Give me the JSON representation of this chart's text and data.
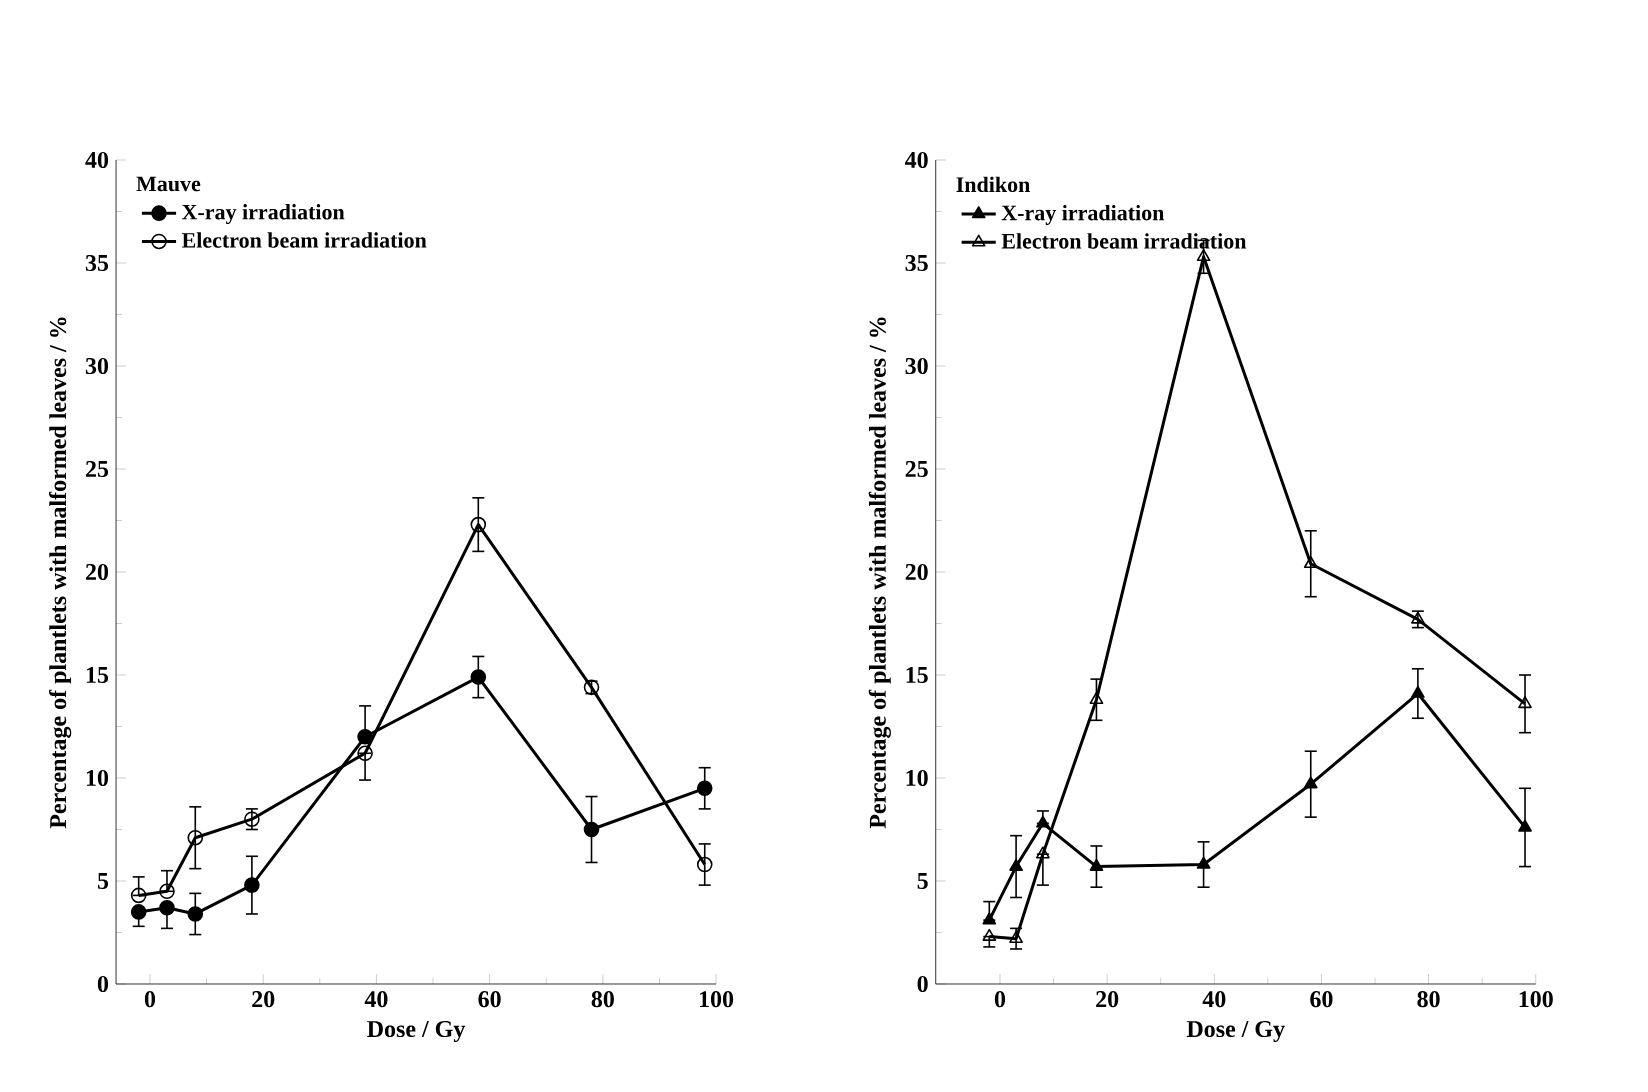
{
  "chart_data": [
    {
      "type": "line",
      "xlabel": "Dose / Gy",
      "ylabel": "Percentage of plantlets with malformed leaves / %",
      "legend_title": "Mauve",
      "legend": "top left",
      "xlim": [
        -6,
        100
      ],
      "ylim": [
        0,
        40
      ],
      "xticks": [
        0,
        20,
        40,
        60,
        80,
        100
      ],
      "yticks": [
        0,
        5,
        10,
        15,
        20,
        25,
        30,
        35,
        40
      ],
      "series": [
        {
          "name": "X-ray irradiation",
          "color": "#000000",
          "marker": "circle",
          "x": [
            -2,
            3,
            8,
            18,
            38,
            58,
            78,
            98
          ],
          "values": [
            3.5,
            3.7,
            3.4,
            4.8,
            12,
            14.9,
            7.5,
            9.5
          ],
          "errors": [
            [
              2.8,
              3.5
            ],
            [
              2.7,
              3.7
            ],
            1,
            1.4,
            [
              12,
              13.5
            ],
            1,
            1.6,
            1
          ]
        },
        {
          "name": "Electron beam irradiation",
          "color": "#000000",
          "marker": "circle",
          "x": [
            -2,
            3,
            8,
            18,
            38,
            58,
            78,
            98
          ],
          "values": [
            4.3,
            4.5,
            7.1,
            8,
            11.2,
            22.3,
            14.4,
            5.8
          ],
          "errors": [
            [
              4.3,
              5.2
            ],
            [
              4.5,
              5.5
            ],
            1.5,
            0.5,
            [
              9.9,
              11.2
            ],
            1.3,
            0.3,
            1
          ]
        }
      ]
    },
    {
      "type": "line",
      "xlabel": "Dose / Gy",
      "ylabel": "Percentage of plantlets with malformed leaves / %",
      "legend_title": "Indikon",
      "legend": "top left",
      "xlim": [
        -12,
        100
      ],
      "ylim": [
        0,
        40
      ],
      "xticks": [
        0,
        20,
        40,
        60,
        80,
        100
      ],
      "yticks": [
        0,
        5,
        10,
        15,
        20,
        25,
        30,
        35,
        40
      ],
      "series": [
        {
          "name": "X-ray irradiation",
          "color": "#000000",
          "marker": "triangle",
          "x": [
            -2,
            3,
            8,
            18,
            38,
            58,
            78,
            98
          ],
          "values": [
            3.1,
            5.7,
            7.8,
            5.7,
            5.8,
            9.7,
            14.1,
            7.6
          ],
          "errors": [
            [
              3.1,
              4
            ],
            1.5,
            [
              7.8,
              8.4
            ],
            1,
            1.1,
            1.6,
            1.2,
            1.9
          ]
        },
        {
          "name": "Electron beam irradiation",
          "color": "#000000",
          "marker": "triangle",
          "x": [
            -2,
            3,
            8,
            18,
            38,
            58,
            78,
            98
          ],
          "values": [
            2.3,
            2.2,
            6.3,
            13.8,
            35.3,
            20.4,
            17.7,
            13.6
          ],
          "errors": [
            [
              1.8,
              2.3
            ],
            0.5,
            [
              4.8,
              6.3
            ],
            1,
            0.8,
            1.6,
            0.4,
            1.4
          ]
        }
      ]
    }
  ]
}
